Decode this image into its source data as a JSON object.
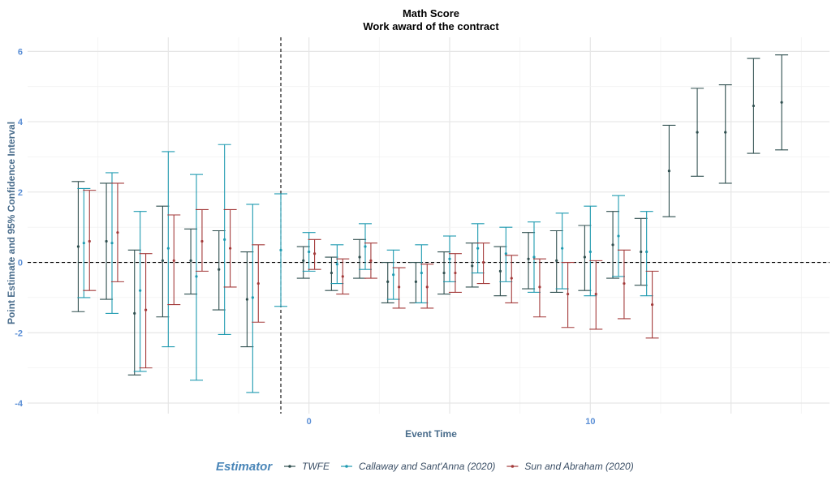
{
  "chart_data": {
    "type": "errorbar",
    "title": "Math Score",
    "subtitle": "Work award of the contract",
    "xlabel": "Event Time",
    "ylabel": "Point Estimate and 95% Confidence Interval",
    "xlim": [
      -10,
      18.5
    ],
    "ylim": [
      -4.3,
      6.4
    ],
    "x_ticks": [
      0,
      10
    ],
    "y_ticks": [
      -4,
      -2,
      0,
      2,
      4,
      6
    ],
    "grid": true,
    "reference_lines": {
      "vertical_x": -1,
      "horizontal_y": 0
    },
    "legend": {
      "title": "Estimator",
      "position": "bottom"
    },
    "series": [
      {
        "name": "TWFE",
        "color": "#2f4f4f",
        "offset": -0.2,
        "points": [
          {
            "x": -8,
            "est": 0.45,
            "lo": -1.4,
            "hi": 2.3
          },
          {
            "x": -7,
            "est": 0.6,
            "lo": -1.05,
            "hi": 2.25
          },
          {
            "x": -6,
            "est": -1.45,
            "lo": -3.2,
            "hi": 0.35
          },
          {
            "x": -5,
            "est": 0.05,
            "lo": -1.55,
            "hi": 1.6
          },
          {
            "x": -4,
            "est": 0.05,
            "lo": -0.9,
            "hi": 0.95
          },
          {
            "x": -3,
            "est": -0.2,
            "lo": -1.35,
            "hi": 0.9
          },
          {
            "x": -2,
            "est": -1.05,
            "lo": -2.4,
            "hi": 0.3
          },
          {
            "x": 0,
            "est": 0.05,
            "lo": -0.45,
            "hi": 0.45
          },
          {
            "x": 1,
            "est": -0.3,
            "lo": -0.8,
            "hi": 0.15
          },
          {
            "x": 2,
            "est": 0.15,
            "lo": -0.45,
            "hi": 0.65
          },
          {
            "x": 3,
            "est": -0.55,
            "lo": -1.15,
            "hi": 0.0
          },
          {
            "x": 4,
            "est": -0.55,
            "lo": -1.15,
            "hi": 0.0
          },
          {
            "x": 5,
            "est": -0.3,
            "lo": -0.9,
            "hi": 0.3
          },
          {
            "x": 6,
            "est": -0.1,
            "lo": -0.7,
            "hi": 0.55
          },
          {
            "x": 7,
            "est": -0.25,
            "lo": -0.95,
            "hi": 0.45
          },
          {
            "x": 8,
            "est": 0.1,
            "lo": -0.75,
            "hi": 0.85
          },
          {
            "x": 9,
            "est": 0.05,
            "lo": -0.85,
            "hi": 0.9
          },
          {
            "x": 10,
            "est": 0.15,
            "lo": -0.8,
            "hi": 1.05
          },
          {
            "x": 11,
            "est": 0.5,
            "lo": -0.45,
            "hi": 1.45
          },
          {
            "x": 12,
            "est": 0.3,
            "lo": -0.65,
            "hi": 1.25
          },
          {
            "x": 13,
            "est": 2.6,
            "lo": 1.3,
            "hi": 3.9
          },
          {
            "x": 14,
            "est": 3.7,
            "lo": 2.45,
            "hi": 4.95
          },
          {
            "x": 15,
            "est": 3.7,
            "lo": 2.25,
            "hi": 5.05
          },
          {
            "x": 16,
            "est": 4.45,
            "lo": 3.1,
            "hi": 5.8
          },
          {
            "x": 17,
            "est": 4.55,
            "lo": 3.2,
            "hi": 5.9
          }
        ]
      },
      {
        "name": "Callaway and Sant'Anna (2020)",
        "color": "#1e9ab0",
        "offset": 0,
        "points": [
          {
            "x": -8,
            "est": 0.55,
            "lo": -1.0,
            "hi": 2.1
          },
          {
            "x": -7,
            "est": 0.55,
            "lo": -1.45,
            "hi": 2.55
          },
          {
            "x": -6,
            "est": -0.8,
            "lo": -3.1,
            "hi": 1.45
          },
          {
            "x": -5,
            "est": 0.4,
            "lo": -2.4,
            "hi": 3.15
          },
          {
            "x": -4,
            "est": -0.4,
            "lo": -3.35,
            "hi": 2.5
          },
          {
            "x": -3,
            "est": 0.65,
            "lo": -2.05,
            "hi": 3.35
          },
          {
            "x": -2,
            "est": -1.0,
            "lo": -3.7,
            "hi": 1.65
          },
          {
            "x": -1,
            "est": 0.35,
            "lo": -1.25,
            "hi": 1.95
          },
          {
            "x": 0,
            "est": 0.3,
            "lo": -0.25,
            "hi": 0.85
          },
          {
            "x": 1,
            "est": -0.05,
            "lo": -0.6,
            "hi": 0.5
          },
          {
            "x": 2,
            "est": 0.45,
            "lo": -0.2,
            "hi": 1.1
          },
          {
            "x": 3,
            "est": -0.35,
            "lo": -1.05,
            "hi": 0.35
          },
          {
            "x": 4,
            "est": -0.3,
            "lo": -1.15,
            "hi": 0.5
          },
          {
            "x": 5,
            "est": 0.1,
            "lo": -0.55,
            "hi": 0.75
          },
          {
            "x": 6,
            "est": 0.4,
            "lo": -0.3,
            "hi": 1.1
          },
          {
            "x": 7,
            "est": 0.25,
            "lo": -0.55,
            "hi": 1.0
          },
          {
            "x": 8,
            "est": 0.15,
            "lo": -0.85,
            "hi": 1.15
          },
          {
            "x": 9,
            "est": 0.4,
            "lo": -0.75,
            "hi": 1.4
          },
          {
            "x": 10,
            "est": 0.3,
            "lo": -0.95,
            "hi": 1.6
          },
          {
            "x": 11,
            "est": 0.75,
            "lo": -0.4,
            "hi": 1.9
          },
          {
            "x": 12,
            "est": 0.3,
            "lo": -0.95,
            "hi": 1.45
          }
        ]
      },
      {
        "name": "Sun and Abraham (2020)",
        "color": "#a33a3a",
        "offset": 0.2,
        "points": [
          {
            "x": -8,
            "est": 0.6,
            "lo": -0.8,
            "hi": 2.05
          },
          {
            "x": -7,
            "est": 0.85,
            "lo": -0.55,
            "hi": 2.25
          },
          {
            "x": -6,
            "est": -1.35,
            "lo": -3.0,
            "hi": 0.25
          },
          {
            "x": -5,
            "est": 0.05,
            "lo": -1.2,
            "hi": 1.35
          },
          {
            "x": -4,
            "est": 0.6,
            "lo": -0.25,
            "hi": 1.5
          },
          {
            "x": -3,
            "est": 0.4,
            "lo": -0.7,
            "hi": 1.5
          },
          {
            "x": -2,
            "est": -0.6,
            "lo": -1.7,
            "hi": 0.5
          },
          {
            "x": 0,
            "est": 0.25,
            "lo": -0.2,
            "hi": 0.65
          },
          {
            "x": 1,
            "est": -0.4,
            "lo": -0.9,
            "hi": 0.1
          },
          {
            "x": 2,
            "est": 0.05,
            "lo": -0.45,
            "hi": 0.55
          },
          {
            "x": 3,
            "est": -0.7,
            "lo": -1.3,
            "hi": -0.15
          },
          {
            "x": 4,
            "est": -0.7,
            "lo": -1.3,
            "hi": -0.05
          },
          {
            "x": 5,
            "est": -0.3,
            "lo": -0.85,
            "hi": 0.25
          },
          {
            "x": 6,
            "est": 0.0,
            "lo": -0.6,
            "hi": 0.55
          },
          {
            "x": 7,
            "est": -0.45,
            "lo": -1.15,
            "hi": 0.2
          },
          {
            "x": 8,
            "est": -0.7,
            "lo": -1.55,
            "hi": 0.1
          },
          {
            "x": 9,
            "est": -0.9,
            "lo": -1.85,
            "hi": 0.0
          },
          {
            "x": 10,
            "est": -0.9,
            "lo": -1.9,
            "hi": 0.05
          },
          {
            "x": 11,
            "est": -0.6,
            "lo": -1.6,
            "hi": 0.35
          },
          {
            "x": 12,
            "est": -1.2,
            "lo": -2.15,
            "hi": -0.25
          }
        ]
      }
    ]
  }
}
